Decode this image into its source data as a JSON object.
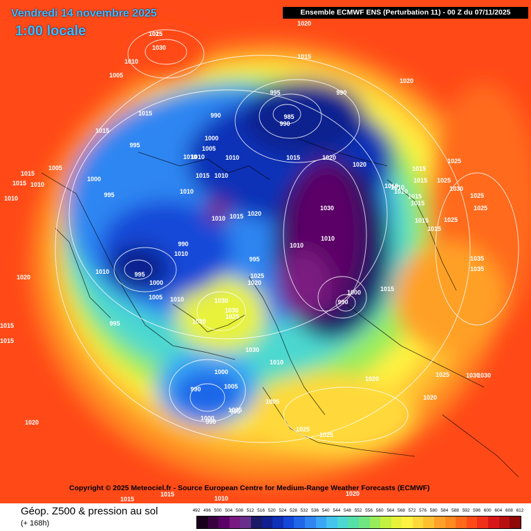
{
  "header": {
    "date": "Vendredi 14 novembre 2025",
    "time": "1:00 locale",
    "run_info": "Ensemble ECMWF ENS  (Perturbation 11)  -  00 Z du 07/11/2025"
  },
  "copyright": "Copyright © 2025 Meteociel.fr - Source European Centre for Medium-Range Weather Forecasts (ECMWF)",
  "legend": {
    "title": "Géop. Z500 & pression au sol",
    "subtitle": "(+ 168h)",
    "ticks": [
      "492",
      "496",
      "500",
      "504",
      "508",
      "512",
      "516",
      "520",
      "524",
      "528",
      "532",
      "536",
      "540",
      "544",
      "548",
      "552",
      "556",
      "560",
      "564",
      "568",
      "572",
      "576",
      "580",
      "584",
      "588",
      "592",
      "596",
      "600",
      "604",
      "608",
      "612"
    ],
    "colors": [
      "#1a001a",
      "#3a0040",
      "#5a0066",
      "#7a1a80",
      "#6a2f8a",
      "#1a1a66",
      "#10208f",
      "#1030b8",
      "#1448d8",
      "#1f66e8",
      "#2f86f2",
      "#3aa6f5",
      "#45c4ee",
      "#4cd8d0",
      "#55e0a8",
      "#70e680",
      "#98ec5a",
      "#c4f040",
      "#e8f23a",
      "#fff240",
      "#ffd93a",
      "#ffc030",
      "#ffa028",
      "#ff8a20",
      "#ff6a1a",
      "#ff4a18",
      "#f03018",
      "#d81818",
      "#b81010",
      "#900808"
    ]
  },
  "map": {
    "pressure_labels": [
      {
        "t": "1025"
      },
      {
        "t": "1030"
      },
      {
        "t": "1020"
      },
      {
        "t": "1010"
      },
      {
        "t": "1005"
      },
      {
        "t": "1015"
      },
      {
        "t": "1010"
      },
      {
        "t": "995"
      },
      {
        "t": "990"
      },
      {
        "t": "985"
      },
      {
        "t": "990"
      },
      {
        "t": "990"
      },
      {
        "t": "1020"
      },
      {
        "t": "1015"
      },
      {
        "t": "1015"
      },
      {
        "t": "995"
      },
      {
        "t": "1000"
      },
      {
        "t": "1005"
      },
      {
        "t": "1010"
      },
      {
        "t": "1010"
      },
      {
        "t": "1015"
      },
      {
        "t": "1020"
      },
      {
        "t": "1020"
      },
      {
        "t": "1025"
      },
      {
        "t": "1015"
      },
      {
        "t": "1010"
      },
      {
        "t": "1010"
      },
      {
        "t": "1000"
      },
      {
        "t": "995"
      },
      {
        "t": "1010"
      },
      {
        "t": "1015"
      },
      {
        "t": "1020"
      },
      {
        "t": "1030"
      },
      {
        "t": "1010"
      },
      {
        "t": "1010"
      },
      {
        "t": "1010"
      },
      {
        "t": "995"
      },
      {
        "t": "990"
      },
      {
        "t": "1010"
      },
      {
        "t": "995"
      },
      {
        "t": "1000"
      },
      {
        "t": "1005"
      },
      {
        "t": "1010"
      },
      {
        "t": "995"
      },
      {
        "t": "1020"
      },
      {
        "t": "1025"
      },
      {
        "t": "1030"
      },
      {
        "t": "1030"
      },
      {
        "t": "1025"
      },
      {
        "t": "1020"
      },
      {
        "t": "1030"
      },
      {
        "t": "1010"
      },
      {
        "t": "1000"
      },
      {
        "t": "1005"
      },
      {
        "t": "990"
      },
      {
        "t": "1000"
      },
      {
        "t": "1035"
      },
      {
        "t": "1020"
      },
      {
        "t": "1015"
      },
      {
        "t": "1000"
      },
      {
        "t": "990"
      },
      {
        "t": "990"
      },
      {
        "t": "995"
      },
      {
        "t": "1005"
      },
      {
        "t": "1020"
      },
      {
        "t": "1025"
      },
      {
        "t": "1025"
      },
      {
        "t": "1020"
      },
      {
        "t": "1025"
      },
      {
        "t": "1030"
      },
      {
        "t": "1030"
      },
      {
        "t": "1035"
      },
      {
        "t": "1035"
      },
      {
        "t": "1025"
      },
      {
        "t": "1030"
      },
      {
        "t": "1025"
      },
      {
        "t": "1025"
      },
      {
        "t": "1015"
      },
      {
        "t": "1010"
      },
      {
        "t": "1010"
      },
      {
        "t": "1015"
      },
      {
        "t": "1020"
      },
      {
        "t": "1015"
      },
      {
        "t": "1015"
      },
      {
        "t": "1015"
      },
      {
        "t": "1015"
      },
      {
        "t": "1010"
      },
      {
        "t": "1020"
      },
      {
        "t": "1025"
      },
      {
        "t": "1015"
      },
      {
        "t": "1015"
      },
      {
        "t": "1010"
      },
      {
        "t": "1005"
      },
      {
        "t": "1010"
      },
      {
        "t": "1015"
      },
      {
        "t": "1015"
      },
      {
        "t": "1015"
      },
      {
        "t": "1010"
      },
      {
        "t": "1015"
      },
      {
        "t": "1015"
      }
    ]
  }
}
